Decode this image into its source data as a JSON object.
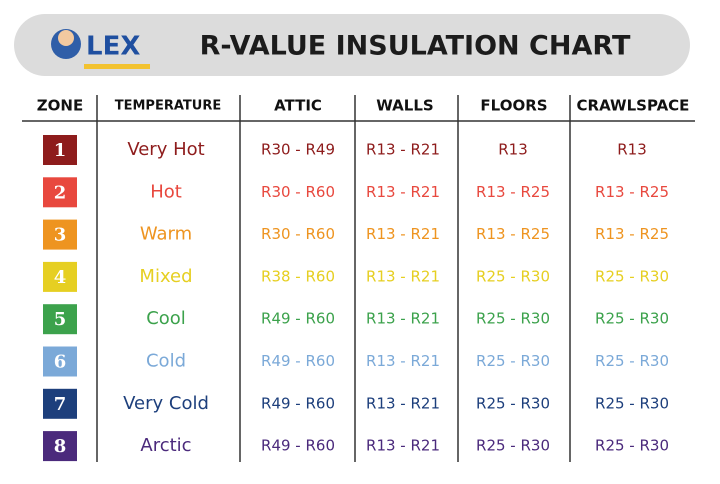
{
  "header": {
    "logo": "LEX",
    "title": "R-VALUE INSULATION CHART"
  },
  "table": {
    "columns": [
      "ZONE",
      "TEMPERATURE",
      "ATTIC",
      "WALLS",
      "FLOORS",
      "CRAWLSPACE"
    ],
    "rows": [
      {
        "zone": 1,
        "temperature": "Very Hot",
        "attic": "R30 - R49",
        "walls": "R13 - R21",
        "floors": "R13",
        "crawlspace": "R13",
        "color": "#8e1c1c"
      },
      {
        "zone": 2,
        "temperature": "Hot",
        "attic": "R30 - R60",
        "walls": "R13 - R21",
        "floors": "R13 - R25",
        "crawlspace": "R13 - R25",
        "color": "#e8483e"
      },
      {
        "zone": 3,
        "temperature": "Warm",
        "attic": "R30 - R60",
        "walls": "R13 - R21",
        "floors": "R13 - R25",
        "crawlspace": "R13 - R25",
        "color": "#ee9420"
      },
      {
        "zone": 4,
        "temperature": "Mixed",
        "attic": "R38 - R60",
        "walls": "R13 - R21",
        "floors": "R25 - R30",
        "crawlspace": "R25 - R30",
        "color": "#e6cf22"
      },
      {
        "zone": 5,
        "temperature": "Cool",
        "attic": "R49 - R60",
        "walls": "R13 - R21",
        "floors": "R25 - R30",
        "crawlspace": "R25 - R30",
        "color": "#3ca24c"
      },
      {
        "zone": 6,
        "temperature": "Cold",
        "attic": "R49 - R60",
        "walls": "R13 - R21",
        "floors": "R25 - R30",
        "crawlspace": "R25 - R30",
        "color": "#7ba9d8"
      },
      {
        "zone": 7,
        "temperature": "Very Cold",
        "attic": "R49 - R60",
        "walls": "R13 - R21",
        "floors": "R25 - R30",
        "crawlspace": "R25 - R30",
        "color": "#1d3f7c"
      },
      {
        "zone": 8,
        "temperature": "Arctic",
        "attic": "R49 - R60",
        "walls": "R13 - R21",
        "floors": "R25 - R30",
        "crawlspace": "R25 - R30",
        "color": "#4b2a7c"
      }
    ]
  }
}
